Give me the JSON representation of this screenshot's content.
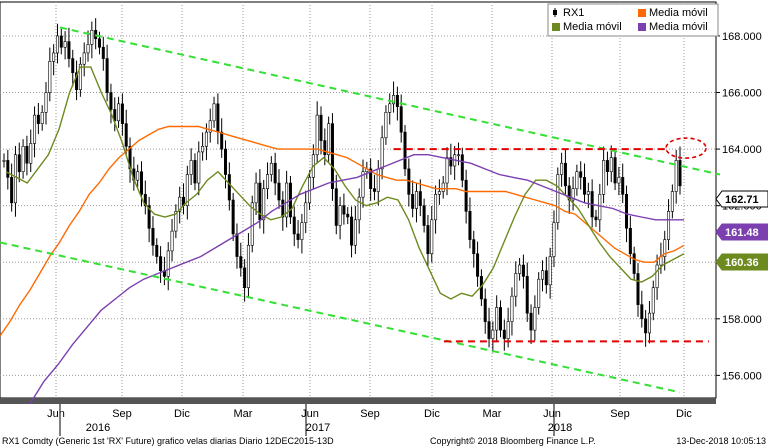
{
  "chart_data": {
    "type": "candlestick",
    "ticker": "RX1",
    "y_ticks": [
      156,
      158,
      160,
      162,
      164,
      166,
      168
    ],
    "ylim": [
      155.2,
      169.2
    ],
    "x_month_labels": [
      "Jun",
      "Sep",
      "Dic",
      "Mar",
      "Jun",
      "Sep",
      "Dic",
      "Mar",
      "Jun",
      "Sep",
      "Dic"
    ],
    "x_year_labels": [
      "2016",
      "2017",
      "2018"
    ],
    "legend": [
      {
        "name": "RX1",
        "color": "#000000"
      },
      {
        "name": "Media móvil",
        "color": "#ff6a00"
      },
      {
        "name": "Media móvil",
        "color": "#6d8a1e"
      },
      {
        "name": "Media móvil",
        "color": "#7b3fb0"
      }
    ],
    "last_values": [
      {
        "label": "162.71",
        "color": "#000000",
        "bg": "#ffffff",
        "fg": "#000000"
      },
      {
        "label": "161.48",
        "color": "#7b3fb0",
        "bg": "#7b3fb0",
        "fg": "#ffffff"
      },
      {
        "label": "160.36",
        "color": "#6d8a1e",
        "bg": "#6d8a1e",
        "fg": "#ffffff"
      }
    ],
    "price_series": [
      [
        163.6,
        163.0,
        162.1,
        163.8,
        163.2,
        164.1,
        163.5,
        164.2,
        165.2,
        164.9,
        165.3,
        166.0,
        167.1,
        167.4,
        168.0,
        167.6,
        167.8,
        167.2,
        166.7,
        166.1,
        167.0,
        167.4,
        167.7,
        168.2,
        167.9,
        167.6,
        167.2,
        166.0,
        165.4,
        165.0,
        165.6,
        164.9,
        164.1,
        163.3,
        162.9,
        163.2,
        162.4,
        162.0,
        161.2,
        160.6,
        160.2,
        159.7,
        159.5,
        160.4,
        161.1,
        161.8,
        162.3,
        162.0,
        163.1,
        163.6,
        162.8,
        163.9,
        164.1,
        164.6,
        165.0,
        165.6,
        164.6,
        164.0,
        163.1,
        162.2,
        161.0,
        160.2,
        159.8,
        159.1,
        160.6,
        162.1,
        162.8,
        161.5,
        162.6,
        163.1,
        163.5,
        162.8,
        162.2,
        161.6,
        162.8,
        161.6,
        161.0,
        160.8,
        161.4,
        162.1,
        163.0,
        163.8,
        165.2,
        164.3,
        163.8,
        164.9,
        162.6,
        161.3,
        162.0,
        161.7,
        161.6,
        160.6,
        161.5,
        162.3,
        163.2,
        163.3,
        162.6,
        162.5,
        163.3,
        164.4,
        165.3,
        165.6,
        165.9,
        165.5,
        164.6,
        163.3,
        162.4,
        161.9,
        162.5,
        162.0,
        161.3,
        160.3,
        161.5,
        162.4,
        162.5,
        162.8,
        163.7,
        163.4,
        163.8,
        163.8,
        162.9,
        161.8,
        160.8,
        160.3,
        159.5,
        158.7,
        157.9,
        157.3,
        157.6,
        158.4,
        157.6,
        157.3,
        157.9,
        158.8,
        159.6,
        159.9,
        159.5,
        158.2,
        157.6,
        158.4,
        159.4,
        159.7,
        159.2,
        160.2,
        161.4,
        163.1,
        163.5,
        162.7,
        162.2,
        162.6,
        163.2,
        163.0,
        162.4,
        162.5,
        161.6,
        161.5,
        162.4,
        163.6,
        163.2,
        163.7,
        162.8,
        163.0,
        162.4,
        161.2,
        160.3,
        159.6,
        158.5,
        158.0,
        157.5,
        158.2,
        159.1,
        159.9,
        160.2,
        160.8,
        161.8,
        162.5,
        163.6,
        162.7
      ]
    ],
    "ma_periods_note": "",
    "ma_long": [
      157.4,
      157.9,
      158.5,
      159.0,
      159.6,
      160.2,
      160.7,
      161.3,
      161.8,
      162.4,
      162.8,
      163.3,
      163.7,
      164.0,
      164.3,
      164.5,
      164.7,
      164.8,
      164.8,
      164.8,
      164.8,
      164.7,
      164.6,
      164.5,
      164.4,
      164.3,
      164.2,
      164.1,
      164.0,
      164.0,
      164.0,
      164.0,
      164.0,
      163.9,
      163.8,
      163.7,
      163.5,
      163.3,
      163.1,
      163.0,
      162.9,
      162.9,
      162.8,
      162.7,
      162.6,
      162.6,
      162.6,
      162.5,
      162.5,
      162.5,
      162.5,
      162.5,
      162.4,
      162.3,
      162.2,
      162.1,
      162.0,
      161.8,
      161.7,
      161.4,
      161.1,
      160.8,
      160.5,
      160.3,
      160.1,
      160.0,
      160.0,
      160.3,
      160.4,
      160.6
    ],
    "ma_mid": [
      163.2,
      163.0,
      162.8,
      163.3,
      163.8,
      164.7,
      166.0,
      166.9,
      166.9,
      166.0,
      165.2,
      164.2,
      163.0,
      162.1,
      161.7,
      161.6,
      161.7,
      162.1,
      162.4,
      162.9,
      163.2,
      162.8,
      162.4,
      162.0,
      161.7,
      161.5,
      161.6,
      161.9,
      162.7,
      163.4,
      163.7,
      163.3,
      162.7,
      162.2,
      162.0,
      162.1,
      162.3,
      162.2,
      161.5,
      160.5,
      159.7,
      158.9,
      158.7,
      158.9,
      158.8,
      159.2,
      159.8,
      160.7,
      161.6,
      162.4,
      162.9,
      162.9,
      162.7,
      162.3,
      161.9,
      161.3,
      160.7,
      160.2,
      159.8,
      159.4,
      159.3,
      159.5,
      159.9,
      160.1,
      160.3
    ],
    "ma_slow": [
      155.0,
      155.8,
      156.4,
      157.1,
      157.7,
      158.3,
      158.7,
      159.1,
      159.4,
      159.6,
      159.8,
      160.0,
      160.2,
      160.5,
      160.8,
      161.1,
      161.4,
      161.8,
      162.1,
      162.4,
      162.6,
      162.8,
      162.9,
      163.0,
      163.2,
      163.4,
      163.6,
      163.8,
      163.8,
      163.7,
      163.6,
      163.5,
      163.3,
      163.1,
      163.0,
      162.9,
      162.7,
      162.5,
      162.3,
      162.1,
      162.0,
      161.9,
      161.7,
      161.6,
      161.5,
      161.5,
      161.5
    ],
    "trend_upper": [
      [
        60,
        168.3
      ],
      [
        720,
        163.1
      ]
    ],
    "trend_lower": [
      [
        0,
        160.7
      ],
      [
        680,
        155.4
      ]
    ],
    "resistance": {
      "value": 164.0,
      "x_from_frac": 0.55,
      "x_to_frac": 0.93
    },
    "support": {
      "value": 157.2,
      "x_from_frac": 0.62,
      "x_to_frac": 0.99
    },
    "grid": true
  },
  "footer": {
    "left": "RX1 Comdty (Generic 1st 'RX' Future) grafico velas diarias  Diario 12DEC2015-13D",
    "center": "Copyright© 2018 Bloomberg Finance L.P.",
    "right": "13-Dec-2018 10:05:13"
  }
}
